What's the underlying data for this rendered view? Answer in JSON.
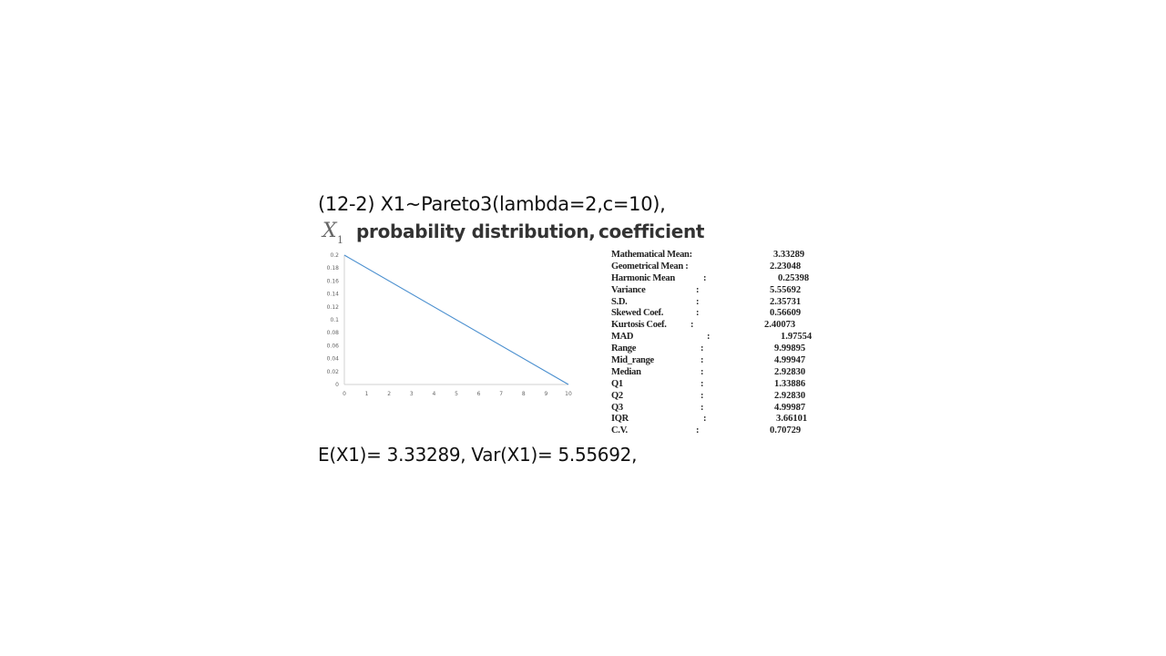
{
  "heading": "(12-2) X1~Pareto3(lambda=2,c=10),",
  "subheading": {
    "variable": "X",
    "variable_subscript": "1",
    "text1": "probability distribution,",
    "text2": "coefficient"
  },
  "chart_data": {
    "type": "line",
    "title": "",
    "xlabel": "",
    "ylabel": "",
    "x_ticks": [
      "0",
      "1",
      "2",
      "3",
      "4",
      "5",
      "6",
      "7",
      "8",
      "9",
      "10"
    ],
    "y_ticks": [
      "0",
      "0.02",
      "0.04",
      "0.06",
      "0.08",
      "0.1",
      "0.12",
      "0.14",
      "0.16",
      "0.18",
      "0.2"
    ],
    "xlim": [
      0,
      10
    ],
    "ylim": [
      0,
      0.2
    ],
    "grid": false,
    "series": [
      {
        "x": [
          0,
          10
        ],
        "y": [
          0.2,
          0
        ],
        "color": "#4a8fcf"
      }
    ]
  },
  "stats": [
    {
      "label": "Mathematical Mean:",
      "colon": "",
      "value": "3.33289"
    },
    {
      "label": "Geometrical Mean :",
      "colon": "",
      "value": "2.23048"
    },
    {
      "label": "Harmonic Mean",
      "colon": ":",
      "value": "0.25398"
    },
    {
      "label": "Variance",
      "colon": ":",
      "value": "5.55692"
    },
    {
      "label": "S.D.",
      "colon": ":",
      "value": "2.35731"
    },
    {
      "label": "Skewed Coef.",
      "colon": ":",
      "value": "0.56609"
    },
    {
      "label": "Kurtosis Coef.",
      "colon": ":",
      "value": "2.40073"
    },
    {
      "label": "MAD",
      "colon": ":",
      "value": "1.97554"
    },
    {
      "label": "Range",
      "colon": ":",
      "value": "9.99895"
    },
    {
      "label": "Mid_range",
      "colon": ":",
      "value": "4.99947"
    },
    {
      "label": "Median",
      "colon": ":",
      "value": "2.92830"
    },
    {
      "label": "Q1",
      "colon": ":",
      "value": "1.33886"
    },
    {
      "label": "Q2",
      "colon": ":",
      "value": "2.92830"
    },
    {
      "label": "Q3",
      "colon": ":",
      "value": "4.99987"
    },
    {
      "label": "IQR",
      "colon": ":",
      "value": "3.66101"
    },
    {
      "label": "C.V.",
      "colon": ":",
      "value": "0.70729"
    }
  ],
  "footer": "E(X1)= 3.33289, Var(X1)= 5.55692,"
}
